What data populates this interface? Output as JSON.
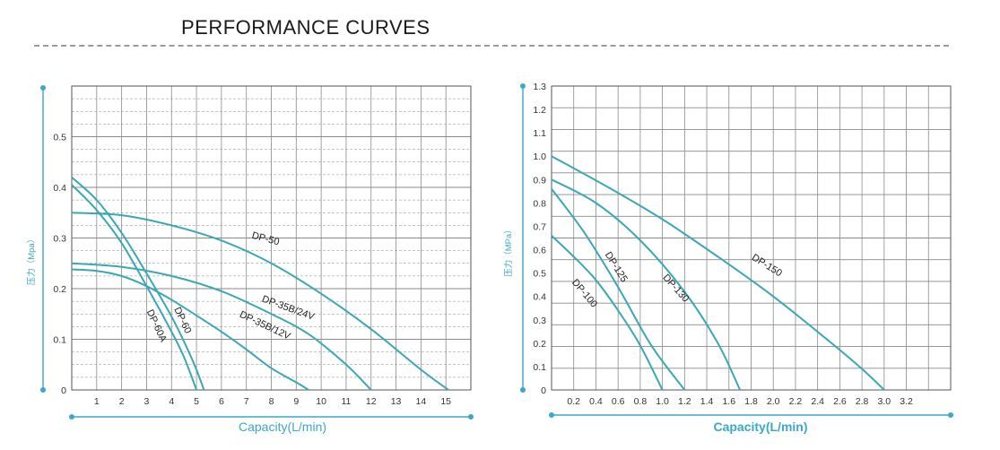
{
  "header": {
    "title": "PERFORMANCE   CURVES"
  },
  "colors": {
    "curve": "#3aa8b4",
    "accent": "#3aa8c8",
    "grid": "#8a8a8a",
    "axis_text": "#333333"
  },
  "chart_data": [
    {
      "type": "line",
      "xlabel": "Capacity(L/min)",
      "ylabel": "压力（Mpa）",
      "xlim": [
        0,
        16
      ],
      "ylim": [
        0,
        0.6
      ],
      "x_ticks": [
        "1",
        "2",
        "3",
        "4",
        "5",
        "6",
        "7",
        "8",
        "9",
        "10",
        "11",
        "12",
        "13",
        "14",
        "15"
      ],
      "y_ticks": [
        "0",
        "0.1",
        "0.2",
        "0.3",
        "0.4",
        "0.5"
      ],
      "grid": true,
      "series": [
        {
          "name": "DP-50",
          "label_at": [
            7.2,
            0.3
          ],
          "label_rotate": 15,
          "points": [
            [
              0,
              0.35
            ],
            [
              2,
              0.345
            ],
            [
              4,
              0.325
            ],
            [
              6,
              0.295
            ],
            [
              8,
              0.25
            ],
            [
              10,
              0.19
            ],
            [
              12,
              0.12
            ],
            [
              14,
              0.04
            ],
            [
              15.1,
              0
            ]
          ]
        },
        {
          "name": "DP-35B/24V",
          "label_at": [
            7.6,
            0.175
          ],
          "label_rotate": 20,
          "points": [
            [
              0,
              0.25
            ],
            [
              2,
              0.243
            ],
            [
              4,
              0.225
            ],
            [
              6,
              0.195
            ],
            [
              8,
              0.15
            ],
            [
              9.5,
              0.11
            ],
            [
              11,
              0.05
            ],
            [
              12,
              0
            ]
          ]
        },
        {
          "name": "DP-35B/12V",
          "label_at": [
            6.7,
            0.145
          ],
          "label_rotate": 25,
          "points": [
            [
              0,
              0.238
            ],
            [
              1,
              0.235
            ],
            [
              2,
              0.225
            ],
            [
              3,
              0.205
            ],
            [
              4,
              0.178
            ],
            [
              5,
              0.147
            ],
            [
              6,
              0.115
            ],
            [
              7,
              0.08
            ],
            [
              8,
              0.043
            ],
            [
              9,
              0.015
            ],
            [
              9.5,
              0
            ]
          ]
        },
        {
          "name": "DP-60",
          "label_at": [
            4.1,
            0.16
          ],
          "label_rotate": 65,
          "points": [
            [
              0,
              0.42
            ],
            [
              1,
              0.375
            ],
            [
              2,
              0.31
            ],
            [
              3,
              0.23
            ],
            [
              4,
              0.145
            ],
            [
              4.6,
              0.085
            ],
            [
              5,
              0.04
            ],
            [
              5.3,
              0
            ]
          ]
        },
        {
          "name": "DP-60A",
          "label_at": [
            3.0,
            0.155
          ],
          "label_rotate": 65,
          "points": [
            [
              0,
              0.405
            ],
            [
              1,
              0.355
            ],
            [
              2,
              0.29
            ],
            [
              3,
              0.205
            ],
            [
              4,
              0.115
            ],
            [
              4.5,
              0.065
            ],
            [
              5,
              0
            ]
          ]
        }
      ]
    },
    {
      "type": "line",
      "xlabel": "Capacity(L/min)",
      "ylabel": "压力（MPa）",
      "xlim": [
        0,
        3.6
      ],
      "ylim": [
        0,
        1.3
      ],
      "x_ticks": [
        "0.2",
        "0.4",
        "0.6",
        "0.8",
        "1.0",
        "1.2",
        "1.4",
        "1.6",
        "1.8",
        "2.0",
        "2.2",
        "2.4",
        "2.6",
        "2.8",
        "3.0",
        "3.2"
      ],
      "y_ticks": [
        "0",
        "0.1",
        "0.2",
        "0.3",
        "0.4",
        "0.5",
        "0.6",
        "0.7",
        "0.8",
        "0.9",
        "1.0",
        "1.1",
        "1.2",
        "1.3"
      ],
      "grid": true,
      "series": [
        {
          "name": "DP-150",
          "label_at": [
            1.8,
            0.56
          ],
          "label_rotate": 32,
          "points": [
            [
              0,
              1.0
            ],
            [
              0.5,
              0.87
            ],
            [
              1.0,
              0.73
            ],
            [
              1.5,
              0.57
            ],
            [
              2.0,
              0.4
            ],
            [
              2.5,
              0.21
            ],
            [
              2.8,
              0.09
            ],
            [
              3.0,
              0
            ]
          ]
        },
        {
          "name": "DP-130",
          "label_at": [
            1.0,
            0.48
          ],
          "label_rotate": 48,
          "points": [
            [
              0,
              0.9
            ],
            [
              0.4,
              0.8
            ],
            [
              0.8,
              0.64
            ],
            [
              1.2,
              0.42
            ],
            [
              1.5,
              0.2
            ],
            [
              1.7,
              0
            ]
          ]
        },
        {
          "name": "DP-125",
          "label_at": [
            0.48,
            0.58
          ],
          "label_rotate": 58,
          "points": [
            [
              0,
              0.86
            ],
            [
              0.3,
              0.67
            ],
            [
              0.6,
              0.44
            ],
            [
              0.9,
              0.19
            ],
            [
              1.2,
              0
            ]
          ]
        },
        {
          "name": "DP-100",
          "label_at": [
            0.18,
            0.46
          ],
          "label_rotate": 50,
          "points": [
            [
              0,
              0.66
            ],
            [
              0.2,
              0.57
            ],
            [
              0.4,
              0.47
            ],
            [
              0.6,
              0.34
            ],
            [
              0.8,
              0.19
            ],
            [
              1.0,
              0
            ]
          ]
        }
      ]
    }
  ]
}
